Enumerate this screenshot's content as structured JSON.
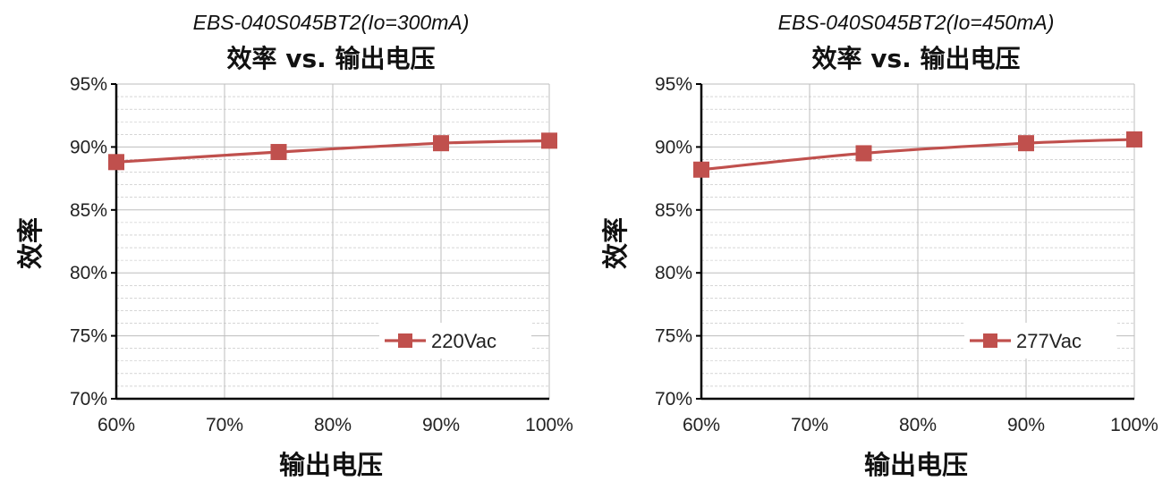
{
  "chart_data": [
    {
      "type": "line",
      "subtitle": "EBS-040S045BT2(Io=300mA)",
      "title": "效率 vs. 输出电压",
      "xlabel": "输出电压",
      "ylabel": "效率",
      "x_ticks": [
        "60%",
        "70%",
        "80%",
        "90%",
        "100%"
      ],
      "y_ticks": [
        "70%",
        "75%",
        "80%",
        "85%",
        "90%",
        "95%"
      ],
      "xlim": [
        60,
        100
      ],
      "ylim": [
        70,
        95
      ],
      "grid": true,
      "legend_position": "bottom-right",
      "series": [
        {
          "name": "220Vac",
          "color": "#c0504d",
          "marker": "square",
          "x": [
            60,
            75,
            90,
            100
          ],
          "y": [
            88.8,
            89.6,
            90.3,
            90.5
          ]
        }
      ]
    },
    {
      "type": "line",
      "subtitle": "EBS-040S045BT2(Io=450mA)",
      "title": "效率 vs. 输出电压",
      "xlabel": "输出电压",
      "ylabel": "效率",
      "x_ticks": [
        "60%",
        "70%",
        "80%",
        "90%",
        "100%"
      ],
      "y_ticks": [
        "70%",
        "75%",
        "80%",
        "85%",
        "90%",
        "95%"
      ],
      "xlim": [
        60,
        100
      ],
      "ylim": [
        70,
        95
      ],
      "grid": true,
      "legend_position": "bottom-right",
      "series": [
        {
          "name": "277Vac",
          "color": "#c0504d",
          "marker": "square",
          "x": [
            60,
            75,
            90,
            100
          ],
          "y": [
            88.2,
            89.5,
            90.3,
            90.6
          ]
        }
      ]
    }
  ]
}
